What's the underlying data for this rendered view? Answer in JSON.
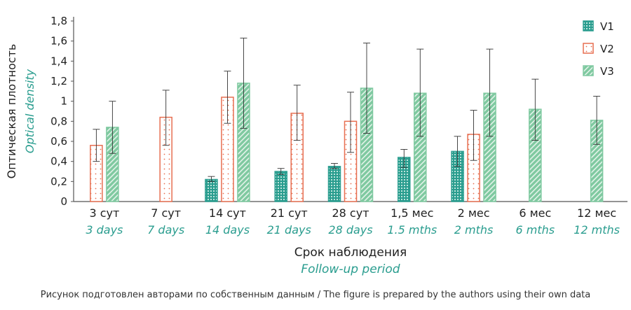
{
  "chart_data": {
    "type": "bar",
    "categories": [
      "3 сут",
      "7 сут",
      "14 сут",
      "21 сут",
      "28 сут",
      "1,5 мес",
      "2 мес",
      "6 мес",
      "12 мес"
    ],
    "categories_en": [
      "3 days",
      "7 days",
      "14 days",
      "21 days",
      "28 days",
      "1.5 mths",
      "2 mths",
      "6 mths",
      "12 mths"
    ],
    "series": [
      {
        "name": "V1",
        "color": "#2a9d8f",
        "values": [
          null,
          null,
          0.22,
          0.3,
          0.35,
          0.44,
          0.5,
          null,
          null
        ],
        "err_low": [
          null,
          null,
          0.2,
          0.27,
          0.33,
          0.34,
          0.35,
          null,
          null
        ],
        "err_high": [
          null,
          null,
          0.25,
          0.33,
          0.38,
          0.52,
          0.65,
          null,
          null
        ]
      },
      {
        "name": "V2",
        "color": "#e76f51",
        "values": [
          0.56,
          0.84,
          1.04,
          0.88,
          0.8,
          null,
          0.67,
          null,
          null
        ],
        "err_low": [
          0.4,
          0.56,
          0.78,
          0.61,
          0.49,
          null,
          0.41,
          null,
          null
        ],
        "err_high": [
          0.72,
          1.11,
          1.3,
          1.16,
          1.09,
          null,
          0.91,
          null,
          null
        ]
      },
      {
        "name": "V3",
        "color": "#7fc9a0",
        "values": [
          0.74,
          null,
          1.18,
          null,
          1.13,
          1.08,
          1.08,
          0.92,
          0.81
        ],
        "err_low": [
          0.48,
          null,
          0.73,
          null,
          0.68,
          0.65,
          0.65,
          0.61,
          0.57
        ],
        "err_high": [
          1.0,
          null,
          1.63,
          null,
          1.58,
          1.52,
          1.52,
          1.22,
          1.05
        ]
      }
    ],
    "ylabel": "Оптическая плотность",
    "ylabel_en": "Optical density",
    "xlabel": "Срок наблюдения",
    "xlabel_en": "Follow-up period",
    "yticks": [
      "0",
      "0,2",
      "0,4",
      "0,6",
      "0,8",
      "1",
      "1,2",
      "1,4",
      "1,6",
      "1,8"
    ],
    "ylim": [
      0,
      1.8
    ],
    "grid": false,
    "legend_position": "top-right"
  },
  "caption": "Рисунок подготовлен авторами по собственным данным / The figure is prepared by the authors using their own data"
}
